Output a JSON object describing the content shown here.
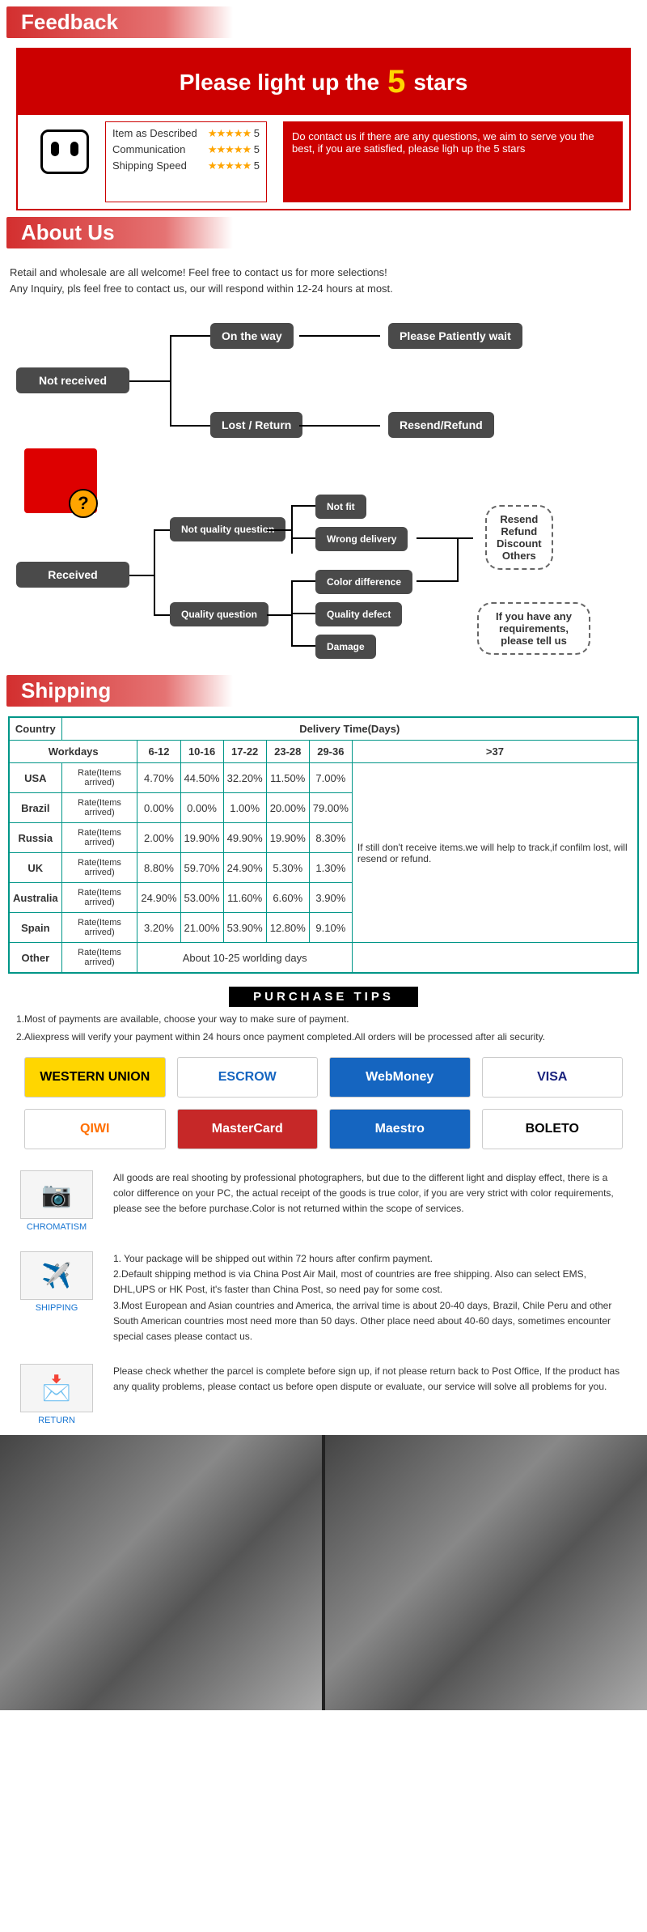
{
  "sections": {
    "feedback": "Feedback",
    "about": "About Us",
    "shipping": "Shipping",
    "purchase": "PURCHASE TIPS"
  },
  "banner": {
    "headline_a": "Please light up the",
    "headline_b": "5",
    "headline_c": "stars",
    "ratings": [
      {
        "label": "Item as Described",
        "stars": "★★★★★",
        "score": "5"
      },
      {
        "label": "Communication",
        "stars": "★★★★★",
        "score": "5"
      },
      {
        "label": "Shipping Speed",
        "stars": "★★★★★",
        "score": "5"
      }
    ],
    "contact": "Do contact us if there are any questions, we aim to serve you the best, if you are satisfied, please ligh up the 5 stars"
  },
  "about_intro": "Retail and wholesale are all welcome! Feel free to contact us for more selections!\nAny Inquiry, pls feel free to contact us, our will respond within 12-24 hours at most.",
  "flow": {
    "not_received": "Not received",
    "received": "Received",
    "on_the_way": "On the way",
    "lost_return": "Lost / Return",
    "please_wait": "Please Patiently wait",
    "resend_refund": "Resend/Refund",
    "not_quality": "Not quality question",
    "quality": "Quality question",
    "not_fit": "Not fit",
    "wrong_delivery": "Wrong delivery",
    "color_diff": "Color difference",
    "quality_defect": "Quality defect",
    "damage": "Damage",
    "cloud1": "Resend\nRefund\nDiscount\nOthers",
    "cloud2": "If you have any requirements, please tell us"
  },
  "shipping_table": {
    "h_country": "Country",
    "h_delivery": "Delivery Time(Days)",
    "h_workdays": "Workdays",
    "cols": [
      "6-12",
      "10-16",
      "17-22",
      "23-28",
      "29-36",
      ">37"
    ],
    "rate_label": "Rate(Items arrived)",
    "rows": [
      {
        "country": "USA",
        "vals": [
          "4.70%",
          "44.50%",
          "32.20%",
          "11.50%",
          "7.00%"
        ]
      },
      {
        "country": "Brazil",
        "vals": [
          "0.00%",
          "0.00%",
          "1.00%",
          "20.00%",
          "79.00%"
        ]
      },
      {
        "country": "Russia",
        "vals": [
          "2.00%",
          "19.90%",
          "49.90%",
          "19.90%",
          "8.30%"
        ]
      },
      {
        "country": "UK",
        "vals": [
          "8.80%",
          "59.70%",
          "24.90%",
          "5.30%",
          "1.30%"
        ]
      },
      {
        "country": "Australia",
        "vals": [
          "24.90%",
          "53.00%",
          "11.60%",
          "6.60%",
          "3.90%"
        ]
      },
      {
        "country": "Spain",
        "vals": [
          "3.20%",
          "21.00%",
          "53.90%",
          "12.80%",
          "9.10%"
        ]
      }
    ],
    "other": "Other",
    "other_note": "About 10-25 worlding days",
    "gt37_note": "If still don't receive items.we will help to track,if confilm lost, will resend or refund."
  },
  "tips": {
    "line1": "1.Most of payments are available, choose your way to make sure of payment.",
    "line2": "2.Aliexpress will verify your payment within 24 hours once payment completed.All orders will be processed after ali security."
  },
  "payments": [
    {
      "label": "WESTERN UNION",
      "bg": "#ffd600",
      "fg": "#000"
    },
    {
      "label": "ESCROW",
      "bg": "#fff",
      "fg": "#1565c0"
    },
    {
      "label": "WebMoney",
      "bg": "#1565c0",
      "fg": "#fff"
    },
    {
      "label": "VISA",
      "bg": "#fff",
      "fg": "#1a237e"
    },
    {
      "label": "QIWI",
      "bg": "#fff",
      "fg": "#ff6f00"
    },
    {
      "label": "MasterCard",
      "bg": "#c62828",
      "fg": "#fff"
    },
    {
      "label": "Maestro",
      "bg": "#1565c0",
      "fg": "#fff"
    },
    {
      "label": "BOLETO",
      "bg": "#fff",
      "fg": "#000"
    }
  ],
  "info": {
    "chromatism": {
      "label": "CHROMATISM",
      "text": "All goods are real shooting by professional photographers, but due to the different light and display effect, there is a color difference on your PC, the actual receipt of the goods is true color, if you are very strict with color requirements, please see the before purchase.Color is not returned within the scope of services."
    },
    "shipping": {
      "label": "SHIPPING",
      "text": "1. Your package will be shipped out within 72 hours after confirm payment.\n2.Default shipping method is via China Post Air Mail, most of countries are free shipping. Also can select EMS, DHL,UPS or HK Post, it's faster than China Post, so need pay for some cost.\n3.Most European and Asian countries and America, the arrival time is about 20-40 days, Brazil, Chile Peru and other South American countries most need more than 50 days. Other place need about 40-60 days, sometimes encounter special cases please contact us."
    },
    "return": {
      "label": "RETURN",
      "text": "Please check whether the parcel is complete before sign up, if not please return back to Post Office, If the product has any quality problems, please contact us before open dispute or evaluate, our service will solve all problems for you."
    }
  }
}
